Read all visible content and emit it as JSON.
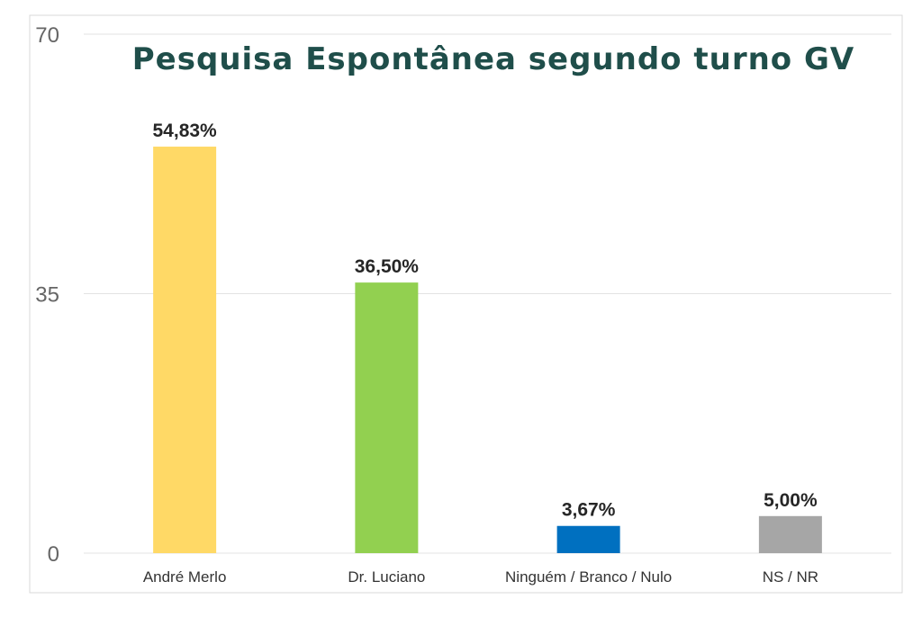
{
  "chart_data": {
    "type": "bar",
    "title": "Pesquisa Espontânea segundo turno GV",
    "xlabel": "",
    "ylabel": "",
    "categories": [
      "André Merlo",
      "Dr. Luciano",
      "Ninguém / Branco / Nulo",
      "NS / NR"
    ],
    "values": [
      54.83,
      36.5,
      3.67,
      5.0
    ],
    "data_labels": [
      "54,83%",
      "36,50%",
      "3,67%",
      "5,00%"
    ],
    "colors": [
      "#ffd966",
      "#92d050",
      "#0070c0",
      "#a6a6a6"
    ],
    "ylim": [
      0,
      70
    ],
    "yticks": [
      0,
      35,
      70
    ],
    "grid": true,
    "legend": "none"
  }
}
